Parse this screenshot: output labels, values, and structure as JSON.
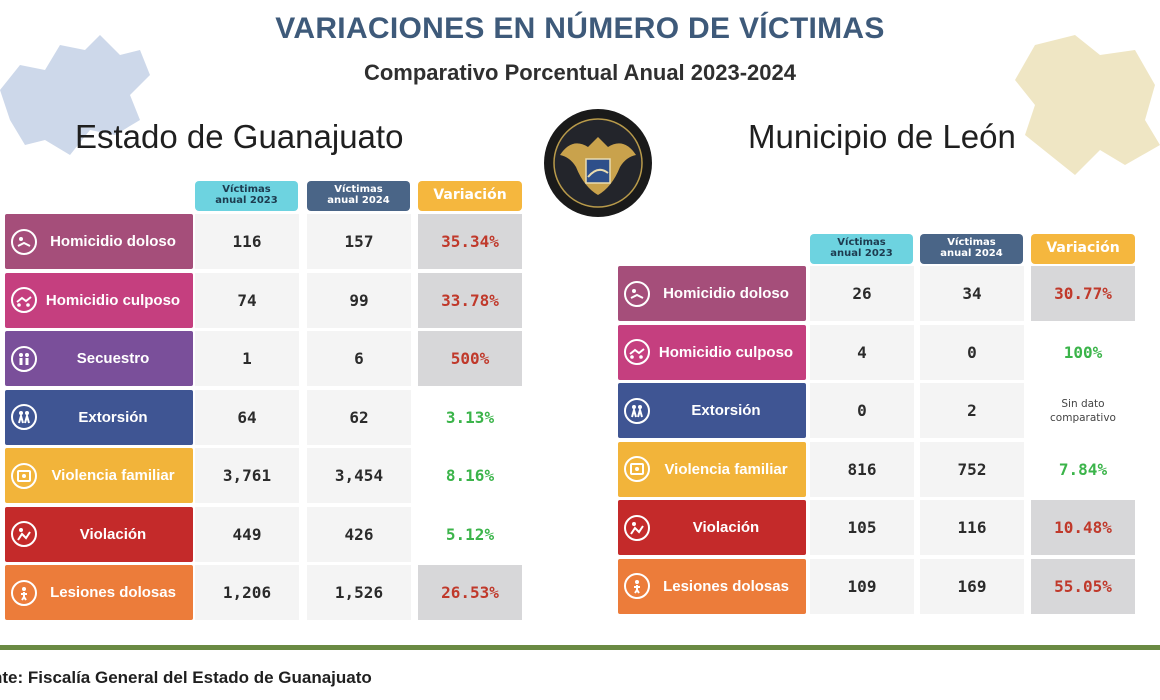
{
  "header": {
    "title": "VARIACIONES EN NÚMERO DE VÍCTIMAS",
    "subtitle": "Comparativo Porcentual Anual 2023-2024"
  },
  "columns": {
    "victims_2023": "Víctimas\nanual 2023",
    "victims_2024": "Víctimas\nanual 2024",
    "variation": "Variación"
  },
  "colors": {
    "title": "#3e5a7a",
    "increase_text": "#c0392b",
    "decrease_text": "#3bb44a",
    "col_2023": "#6dd3e0",
    "col_2024": "#4a6587",
    "col_variation": "#f5b73e",
    "footer_line": "#6a8a43"
  },
  "guanajuato": {
    "title": "Estado de Guanajuato",
    "rows": [
      {
        "crime": "Homicidio doloso",
        "icon": "homicide-icon",
        "color": "#a54e7a",
        "v2023": "116",
        "v2024": "157",
        "variation": "35.34%",
        "trend": "increase"
      },
      {
        "crime": "Homicidio culposo",
        "icon": "accident-icon",
        "color": "#c53f7f",
        "v2023": "74",
        "v2024": "99",
        "variation": "33.78%",
        "trend": "increase"
      },
      {
        "crime": "Secuestro",
        "icon": "kidnapping-icon",
        "color": "#7a4f9a",
        "v2023": "1",
        "v2024": "6",
        "variation": "500%",
        "trend": "increase"
      },
      {
        "crime": "Extorsión",
        "icon": "extortion-icon",
        "color": "#3f5593",
        "v2023": "64",
        "v2024": "62",
        "variation": "3.13%",
        "trend": "decrease"
      },
      {
        "crime": "Violencia familiar",
        "icon": "family-violence-icon",
        "color": "#f2b43a",
        "v2023": "3,761",
        "v2024": "3,454",
        "variation": "8.16%",
        "trend": "decrease"
      },
      {
        "crime": "Violación",
        "icon": "rape-icon",
        "color": "#c42a2a",
        "v2023": "449",
        "v2024": "426",
        "variation": "5.12%",
        "trend": "decrease"
      },
      {
        "crime": "Lesiones dolosas",
        "icon": "injury-icon",
        "color": "#ec7c3a",
        "v2023": "1,206",
        "v2024": "1,526",
        "variation": "26.53%",
        "trend": "increase"
      }
    ]
  },
  "leon": {
    "title": "Municipio de León",
    "rows": [
      {
        "crime": "Homicidio doloso",
        "icon": "homicide-icon",
        "color": "#a54e7a",
        "v2023": "26",
        "v2024": "34",
        "variation": "30.77%",
        "trend": "increase"
      },
      {
        "crime": "Homicidio culposo",
        "icon": "accident-icon",
        "color": "#c53f7f",
        "v2023": "4",
        "v2024": "0",
        "variation": "100%",
        "trend": "decrease"
      },
      {
        "crime": "Extorsión",
        "icon": "extortion-icon",
        "color": "#3f5593",
        "v2023": "0",
        "v2024": "2",
        "variation": "Sin dato\ncomparativo",
        "trend": "none"
      },
      {
        "crime": "Violencia familiar",
        "icon": "family-violence-icon",
        "color": "#f2b43a",
        "v2023": "816",
        "v2024": "752",
        "variation": "7.84%",
        "trend": "decrease"
      },
      {
        "crime": "Violación",
        "icon": "rape-icon",
        "color": "#c42a2a",
        "v2023": "105",
        "v2024": "116",
        "variation": "10.48%",
        "trend": "increase"
      },
      {
        "crime": "Lesiones dolosas",
        "icon": "injury-icon",
        "color": "#ec7c3a",
        "v2023": "109",
        "v2024": "169",
        "variation": "55.05%",
        "trend": "increase"
      }
    ]
  },
  "footer": {
    "source": "nte:  Fiscalía General del Estado de Guanajuato"
  }
}
